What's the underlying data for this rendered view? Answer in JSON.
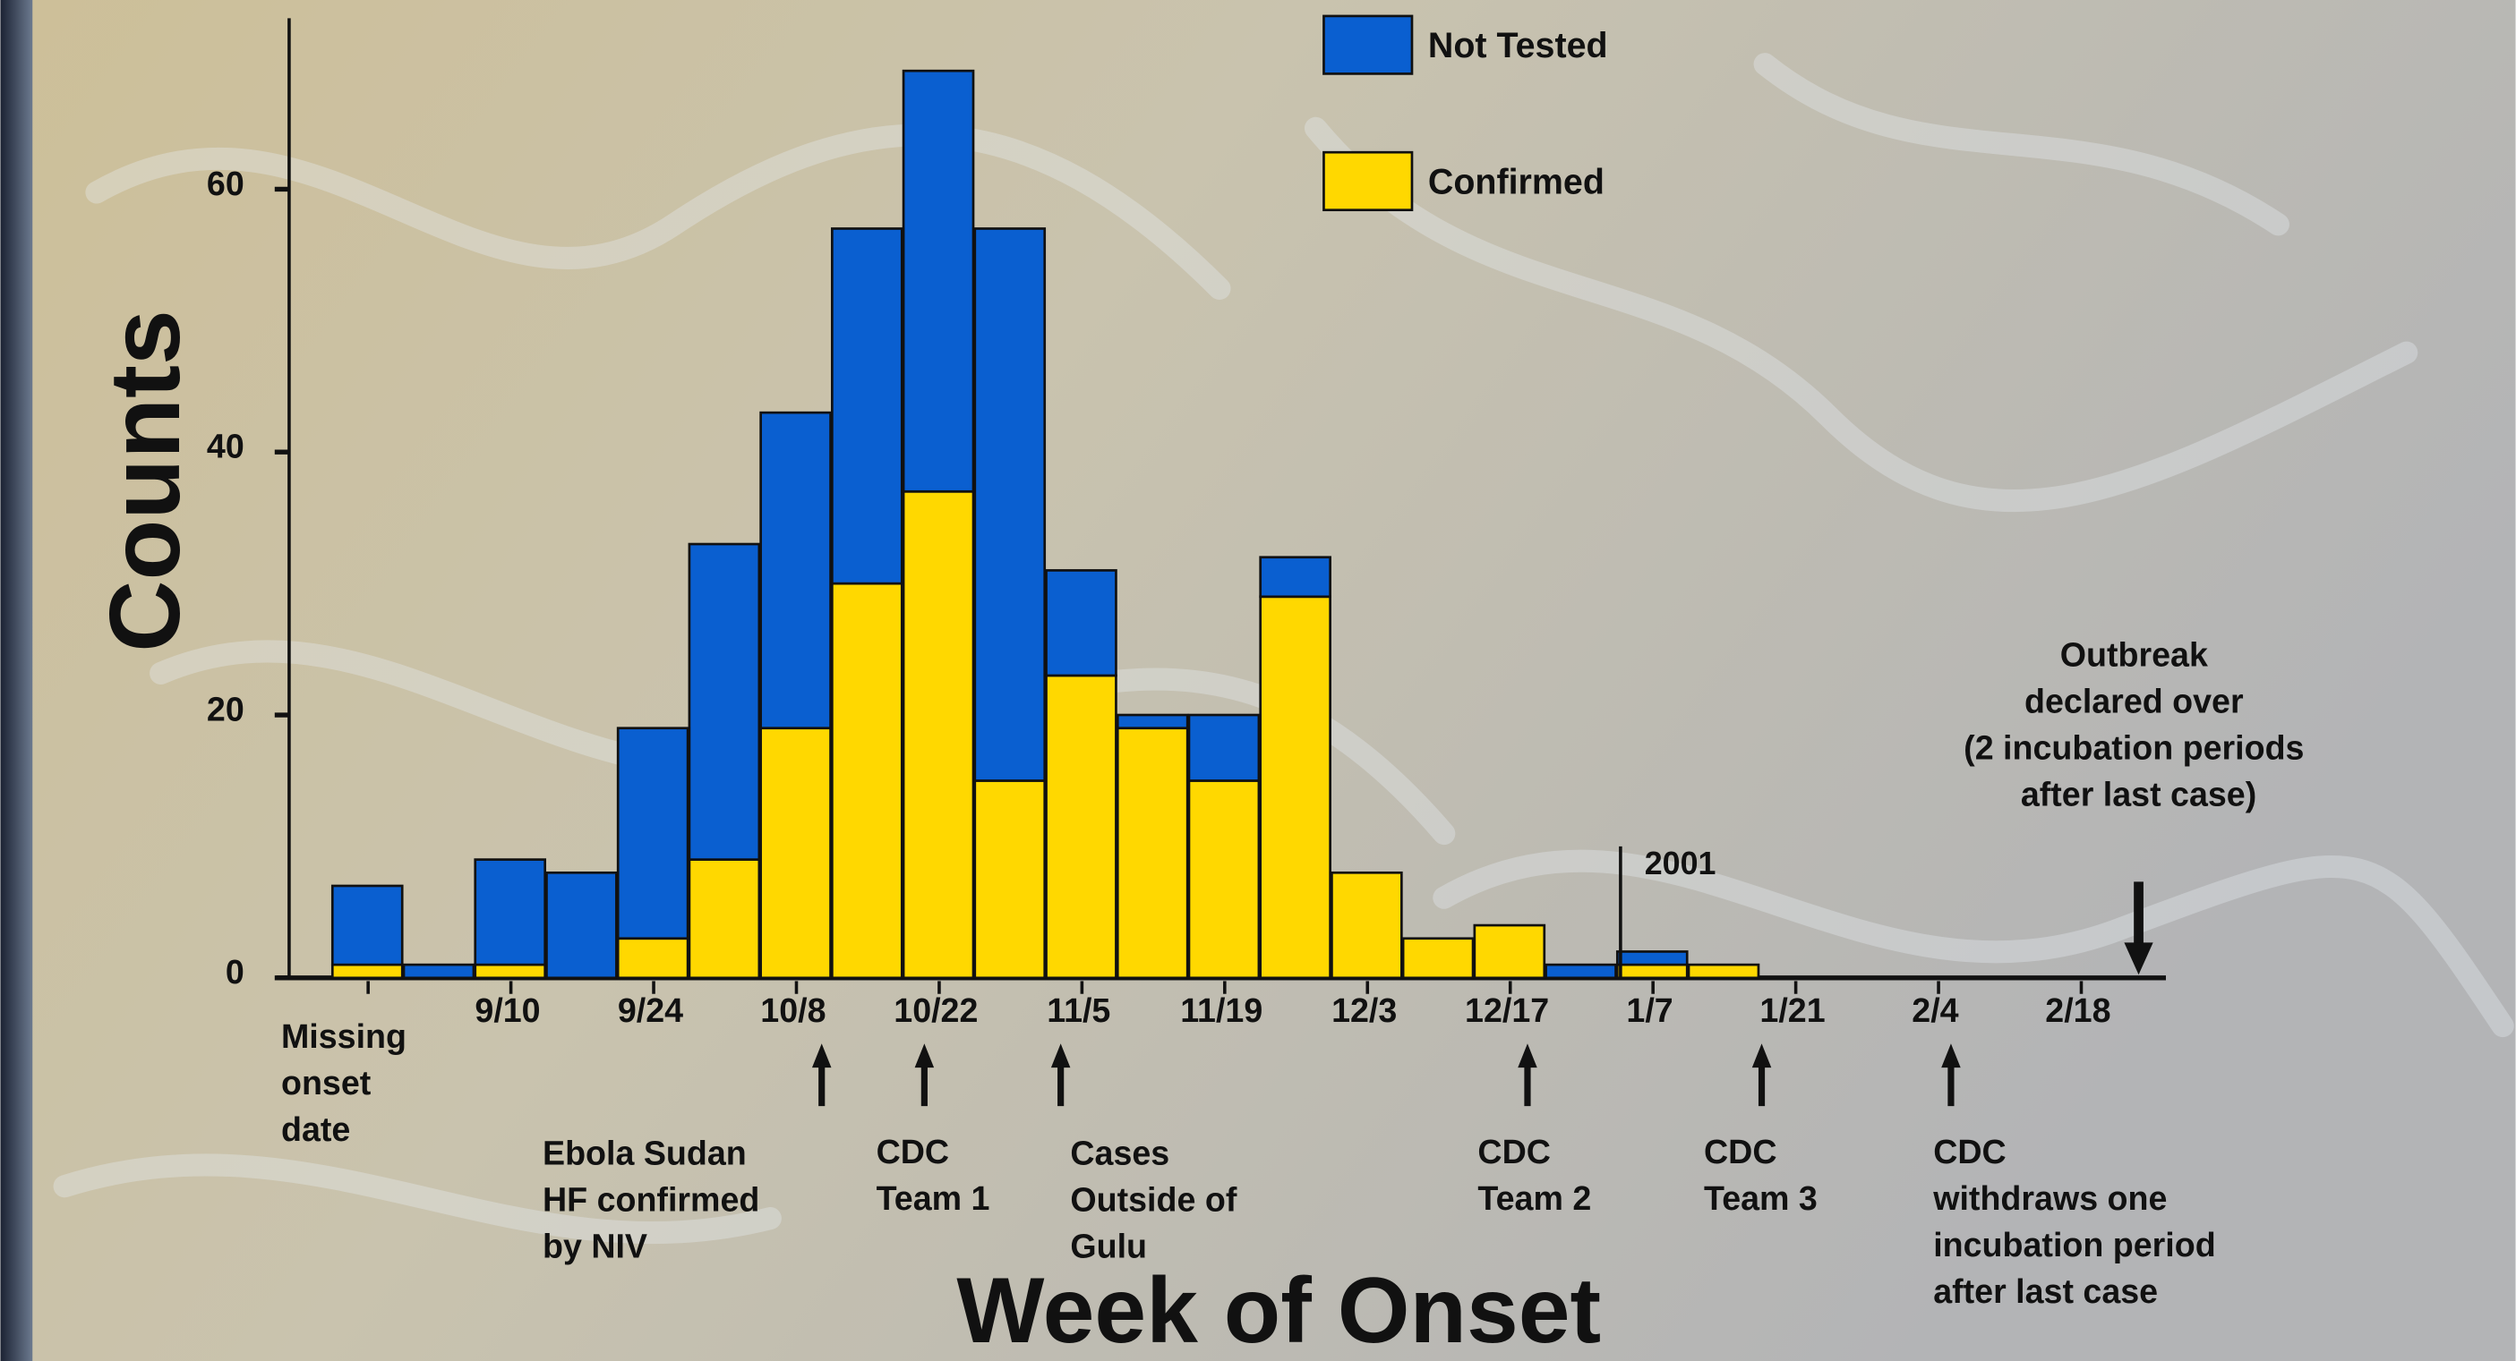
{
  "chart_data": {
    "type": "stacked_bar",
    "x_label": "Week of Onset",
    "y_label": "Counts",
    "categories": [
      "Missing onset date",
      null,
      "9/10",
      null,
      "9/24",
      null,
      "10/8",
      null,
      "10/22",
      null,
      "11/5",
      null,
      "11/19",
      null,
      "12/3",
      null,
      "12/17",
      null,
      "1/7",
      null,
      "1/21",
      null,
      "2/4",
      null,
      "2/18"
    ],
    "series": [
      {
        "name": "Confirmed",
        "color": "#ffd800",
        "values": [
          1,
          0,
          1,
          0,
          3,
          9,
          19,
          30,
          37,
          15,
          23,
          19,
          15,
          29,
          8,
          3,
          4,
          0,
          1,
          1,
          null,
          null,
          null,
          null,
          null
        ]
      },
      {
        "name": "Not Tested",
        "color": "#0a5fd0",
        "values": [
          6,
          1,
          8,
          8,
          16,
          24,
          24,
          27,
          32,
          42,
          8,
          1,
          5,
          3,
          0,
          0,
          0,
          1,
          1,
          0,
          null,
          null,
          null,
          null,
          null
        ]
      }
    ],
    "ylim": [
      0,
      73
    ],
    "yticks": [
      0,
      20,
      40,
      60
    ],
    "year_marker": "2001",
    "annotations": [
      {
        "text": "Ebola Sudan HF confirmed by NIV"
      },
      {
        "text": "CDC Team 1"
      },
      {
        "text": "Cases Outside of Gulu"
      },
      {
        "text": "CDC Team 2"
      },
      {
        "text": "CDC Team 3"
      },
      {
        "text": "CDC withdraws one incubation period after last case"
      },
      {
        "text": "Outbreak declared over (2 incubation periods after last case)"
      }
    ]
  }
}
